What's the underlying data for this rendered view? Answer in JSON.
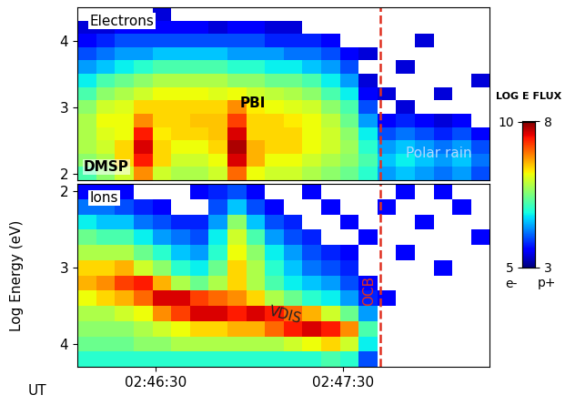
{
  "chart_data": [
    {
      "type": "heatmap",
      "title": "Electrons",
      "x_edges": [
        5,
        11,
        17,
        23,
        29,
        35,
        41,
        47,
        53,
        59,
        65,
        71,
        77,
        83,
        89,
        95,
        101,
        107,
        113,
        119,
        125,
        131,
        137
      ],
      "y_edges": [
        1.9,
        2.1,
        2.3,
        2.5,
        2.7,
        2.9,
        3.1,
        3.3,
        3.5,
        3.7,
        3.9,
        4.1,
        4.3,
        4.5
      ],
      "cells_by_time": [
        [
          7.2,
          7.6,
          7.8,
          7.8,
          7.8,
          7.6,
          7.2,
          6.8,
          6.4,
          6.0,
          5.6,
          5.4,
          null
        ],
        [
          7.6,
          7.8,
          8.0,
          8.1,
          8.2,
          8.0,
          7.6,
          7.2,
          6.6,
          6.2,
          5.8,
          5.4,
          null
        ],
        [
          8.0,
          8.4,
          8.4,
          8.2,
          8.2,
          8.1,
          7.8,
          7.4,
          6.8,
          6.4,
          6.0,
          5.6,
          null
        ],
        [
          8.8,
          9.4,
          9.6,
          9.4,
          8.8,
          8.4,
          8.0,
          7.6,
          7.0,
          6.4,
          6.0,
          5.6,
          null
        ],
        [
          8.0,
          8.4,
          8.4,
          8.3,
          8.4,
          8.4,
          8.2,
          7.8,
          7.2,
          6.6,
          6.0,
          5.6,
          5.4
        ],
        [
          7.8,
          8.0,
          8.2,
          8.4,
          8.4,
          8.4,
          8.2,
          7.8,
          7.2,
          6.6,
          6.0,
          5.6,
          null
        ],
        [
          7.8,
          8.0,
          8.2,
          8.4,
          8.5,
          8.4,
          8.2,
          7.8,
          7.2,
          6.6,
          6.0,
          5.6,
          null
        ],
        [
          8.0,
          8.2,
          8.4,
          8.5,
          8.5,
          8.4,
          8.1,
          7.8,
          7.2,
          6.6,
          6.0,
          5.4,
          null
        ],
        [
          9.0,
          9.6,
          9.8,
          9.6,
          9.2,
          8.8,
          8.2,
          7.6,
          7.0,
          6.4,
          6.0,
          5.6,
          null
        ],
        [
          8.2,
          8.6,
          8.6,
          8.4,
          8.4,
          8.3,
          8.0,
          7.6,
          7.0,
          6.4,
          6.0,
          5.6,
          null
        ],
        [
          8.0,
          8.2,
          8.4,
          8.4,
          8.4,
          8.2,
          7.9,
          7.4,
          6.8,
          6.4,
          5.8,
          5.4,
          null
        ],
        [
          8.0,
          8.2,
          8.4,
          8.4,
          8.3,
          8.1,
          7.8,
          7.4,
          6.8,
          6.2,
          5.8,
          5.4,
          null
        ],
        [
          7.8,
          8.0,
          8.2,
          8.2,
          8.2,
          8.0,
          7.6,
          7.2,
          6.6,
          6.2,
          5.8,
          null,
          null
        ],
        [
          7.6,
          7.8,
          8.0,
          8.0,
          7.9,
          7.6,
          7.2,
          6.8,
          6.4,
          6.0,
          5.6,
          null,
          null
        ],
        [
          7.4,
          7.6,
          7.7,
          7.6,
          7.4,
          7.2,
          6.8,
          6.4,
          6.0,
          5.6,
          null,
          null,
          null
        ],
        [
          7.0,
          7.2,
          7.0,
          6.8,
          6.4,
          6.0,
          5.6,
          5.4,
          null,
          5.4,
          null,
          null,
          null
        ],
        [
          6.4,
          6.6,
          6.4,
          6.0,
          5.6,
          null,
          5.4,
          null,
          null,
          null,
          null,
          null,
          null
        ],
        [
          6.6,
          6.8,
          6.6,
          6.2,
          5.8,
          5.4,
          null,
          null,
          5.4,
          null,
          null,
          null,
          null
        ],
        [
          6.4,
          6.6,
          6.4,
          6.0,
          5.6,
          null,
          null,
          null,
          null,
          null,
          5.4,
          null,
          null
        ],
        [
          6.2,
          6.4,
          6.2,
          5.8,
          5.4,
          null,
          5.4,
          null,
          null,
          null,
          null,
          null,
          null
        ],
        [
          6.4,
          6.6,
          6.4,
          6.0,
          5.6,
          null,
          null,
          null,
          null,
          null,
          null,
          null,
          null
        ],
        [
          6.0,
          6.2,
          6.0,
          5.6,
          null,
          null,
          null,
          5.4,
          null,
          null,
          null,
          null,
          null
        ]
      ],
      "xlim": [
        5,
        137
      ],
      "ylim": [
        1.9,
        4.5
      ],
      "yticks": [
        2,
        3,
        4
      ],
      "tick_labels": "y",
      "colorbar": {
        "range": [
          5,
          10
        ],
        "ticks": [
          5,
          10
        ],
        "label": "e-"
      },
      "annotations": [
        {
          "text": "DMSP",
          "x": 7,
          "y": 2.1
        },
        {
          "text": "PBI",
          "x": 57,
          "y": 3.05
        },
        {
          "text": "Polar rain",
          "x": 110,
          "y": 2.3
        }
      ]
    },
    {
      "type": "heatmap",
      "title": "Ions",
      "x_edges": [
        5,
        11,
        17,
        23,
        29,
        35,
        41,
        47,
        53,
        59,
        65,
        71,
        77,
        83,
        89,
        95,
        101,
        107,
        113,
        119,
        125,
        131,
        137
      ],
      "y_edges": [
        1.9,
        2.1,
        2.3,
        2.5,
        2.7,
        2.9,
        3.1,
        3.3,
        3.5,
        3.7,
        3.9,
        4.1,
        4.3
      ],
      "cells_by_time": [
        [
          3.6,
          4.2,
          4.8,
          5.4,
          5.8,
          6.4,
          6.6,
          6.2,
          5.8,
          5.6,
          5.4,
          5.0
        ],
        [
          3.6,
          4.2,
          4.6,
          5.2,
          5.8,
          6.4,
          6.8,
          6.4,
          5.8,
          5.6,
          5.4,
          5.0
        ],
        [
          3.6,
          4.0,
          4.6,
          5.2,
          5.8,
          6.6,
          7.2,
          6.6,
          6.0,
          5.6,
          5.4,
          5.0
        ],
        [
          null,
          3.8,
          4.2,
          4.8,
          5.4,
          6.0,
          7.4,
          7.0,
          6.2,
          5.8,
          5.6,
          5.0
        ],
        [
          null,
          3.6,
          4.0,
          4.4,
          5.0,
          5.6,
          6.6,
          7.6,
          6.8,
          6.0,
          5.6,
          5.0
        ],
        [
          null,
          null,
          3.8,
          4.2,
          4.6,
          5.0,
          5.8,
          7.6,
          7.2,
          6.2,
          5.8,
          5.0
        ],
        [
          3.6,
          null,
          3.8,
          4.0,
          4.4,
          4.8,
          5.4,
          7.2,
          7.6,
          6.4,
          5.8,
          5.0
        ],
        [
          3.8,
          4.0,
          4.4,
          4.8,
          5.0,
          5.4,
          5.8,
          7.0,
          7.6,
          6.4,
          5.8,
          5.0
        ],
        [
          4.0,
          4.6,
          5.6,
          6.0,
          6.2,
          6.4,
          6.4,
          6.8,
          7.4,
          6.6,
          5.8,
          5.0
        ],
        [
          3.6,
          4.0,
          4.6,
          5.2,
          5.6,
          5.8,
          5.8,
          6.4,
          7.6,
          6.6,
          5.8,
          5.0
        ],
        [
          null,
          3.6,
          4.0,
          4.4,
          4.8,
          5.0,
          5.2,
          5.8,
          7.4,
          7.0,
          5.8,
          5.0
        ],
        [
          null,
          null,
          3.8,
          4.0,
          4.4,
          4.6,
          4.8,
          5.4,
          7.0,
          7.4,
          6.0,
          5.0
        ],
        [
          3.6,
          null,
          null,
          3.8,
          4.0,
          4.2,
          4.6,
          5.0,
          6.6,
          7.6,
          6.2,
          5.0
        ],
        [
          null,
          3.6,
          null,
          null,
          3.8,
          4.0,
          4.4,
          4.8,
          6.0,
          7.4,
          6.4,
          5.2
        ],
        [
          null,
          null,
          3.6,
          null,
          3.6,
          3.8,
          4.0,
          4.4,
          5.4,
          6.8,
          6.0,
          5.0
        ],
        [
          null,
          null,
          null,
          3.6,
          null,
          null,
          3.6,
          3.8,
          4.4,
          5.2,
          4.8,
          4.0
        ],
        [
          null,
          3.6,
          null,
          null,
          null,
          null,
          null,
          3.6,
          null,
          null,
          null,
          null
        ],
        [
          3.6,
          null,
          null,
          null,
          3.6,
          null,
          null,
          null,
          null,
          null,
          null,
          null
        ],
        [
          null,
          null,
          3.6,
          null,
          null,
          null,
          null,
          null,
          null,
          null,
          null,
          null
        ],
        [
          3.6,
          null,
          null,
          null,
          null,
          3.6,
          null,
          null,
          null,
          null,
          null,
          null
        ],
        [
          null,
          3.6,
          null,
          null,
          null,
          null,
          null,
          null,
          null,
          null,
          null,
          null
        ],
        [
          null,
          null,
          null,
          3.6,
          null,
          null,
          null,
          null,
          null,
          null,
          null,
          null
        ]
      ],
      "xlim": [
        5,
        137
      ],
      "xticks": [
        {
          "value": 30,
          "label": "02:46:30"
        },
        {
          "value": 90,
          "label": "02:47:30"
        }
      ],
      "ylim": [
        4.3,
        1.9
      ],
      "yticks": [
        2,
        3,
        4
      ],
      "colorbar": {
        "range": [
          3,
          8
        ],
        "ticks": [
          3,
          8
        ],
        "label": "p+"
      },
      "annotations": [
        {
          "text": "VDIS",
          "x": 66,
          "y": 3.62
        }
      ]
    }
  ],
  "xlabel": "UT",
  "ylabel": "Log Energy (eV)",
  "colorbar_title": "LOG E FLUX",
  "boundary": {
    "label": "OCB",
    "x": 102
  }
}
